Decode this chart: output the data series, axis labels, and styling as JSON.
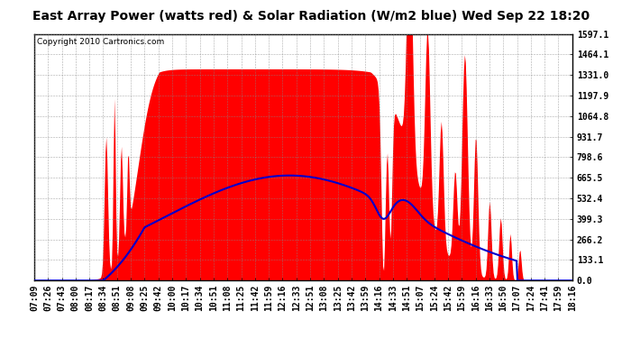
{
  "title": "East Array Power (watts red) & Solar Radiation (W/m2 blue) Wed Sep 22 18:20",
  "copyright_text": "Copyright 2010 Cartronics.com",
  "y_tick_labels": [
    "0.0",
    "133.1",
    "266.2",
    "399.3",
    "532.4",
    "665.5",
    "798.6",
    "931.7",
    "1064.8",
    "1197.9",
    "1331.0",
    "1464.1",
    "1597.1"
  ],
  "y_tick_values": [
    0.0,
    133.1,
    266.2,
    399.3,
    532.4,
    665.5,
    798.6,
    931.7,
    1064.8,
    1197.9,
    1331.0,
    1464.1,
    1597.1
  ],
  "ymax": 1597.1,
  "x_labels": [
    "07:09",
    "07:26",
    "07:43",
    "08:00",
    "08:17",
    "08:34",
    "08:51",
    "09:08",
    "09:25",
    "09:42",
    "10:00",
    "10:17",
    "10:34",
    "10:51",
    "11:08",
    "11:25",
    "11:42",
    "11:59",
    "12:16",
    "12:33",
    "12:51",
    "13:08",
    "13:25",
    "13:42",
    "13:59",
    "14:16",
    "14:33",
    "14:51",
    "15:07",
    "15:24",
    "15:42",
    "15:59",
    "16:16",
    "16:33",
    "16:50",
    "17:07",
    "17:24",
    "17:41",
    "17:59",
    "18:16"
  ],
  "bg_color": "#ffffff",
  "plot_bg_color": "#ffffff",
  "grid_color": "#888888",
  "red_color": "#ff0000",
  "blue_color": "#0000cc",
  "title_fontsize": 10,
  "tick_fontsize": 7,
  "copyright_fontsize": 6.5
}
